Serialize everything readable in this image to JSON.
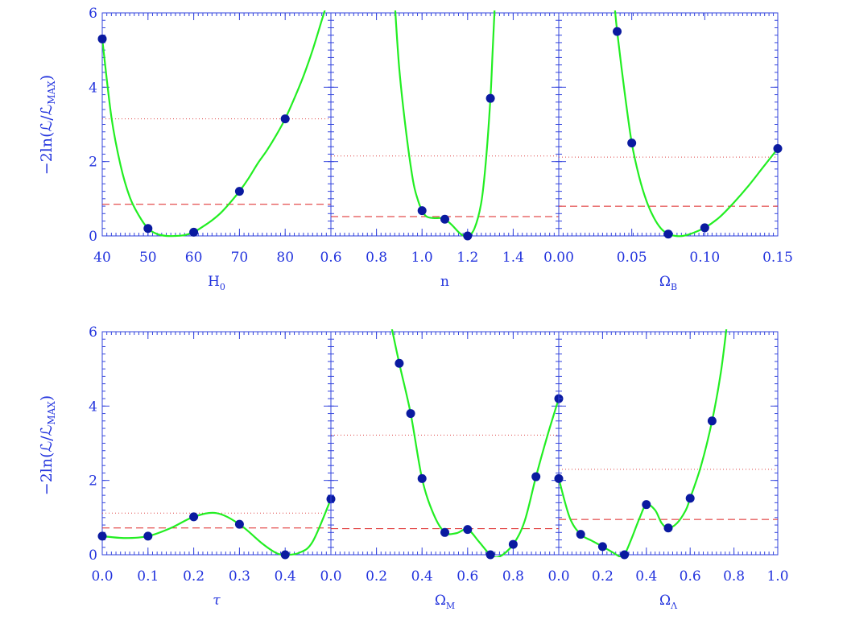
{
  "colors": {
    "axis": "#3344dd",
    "curve": "#22ee22",
    "point": "#0a1aa0",
    "sigma1": "#dd2222",
    "sigma2": "#dd4444"
  },
  "ylabel": "−2ln(ℒ/ℒ",
  "ylabel_sub": "MAX",
  "chart_data": [
    {
      "type": "line",
      "xlabel": "H",
      "xlabel_sub": "0",
      "xlim": [
        40,
        90
      ],
      "ylim": [
        0,
        6
      ],
      "xticks": [
        "40",
        "50",
        "60",
        "70",
        "80",
        "0.6"
      ],
      "xtick_values": [
        40,
        50,
        60,
        70,
        80,
        90
      ],
      "yticks": [
        "0",
        "2",
        "4",
        "6"
      ],
      "points": [
        [
          40,
          5.3
        ],
        [
          50,
          0.2
        ],
        [
          60,
          0.1
        ],
        [
          70,
          1.2
        ],
        [
          80,
          3.15
        ]
      ],
      "curve": [
        [
          40,
          5.3
        ],
        [
          42,
          3.2
        ],
        [
          44,
          1.9
        ],
        [
          46,
          1.05
        ],
        [
          48,
          0.55
        ],
        [
          50,
          0.2
        ],
        [
          52,
          0.05
        ],
        [
          54,
          0.0
        ],
        [
          56,
          0.0
        ],
        [
          58,
          0.02
        ],
        [
          60,
          0.1
        ],
        [
          62,
          0.25
        ],
        [
          64,
          0.42
        ],
        [
          66,
          0.63
        ],
        [
          68,
          0.9
        ],
        [
          70,
          1.2
        ],
        [
          72,
          1.55
        ],
        [
          74,
          1.95
        ],
        [
          76,
          2.3
        ],
        [
          78,
          2.7
        ],
        [
          80,
          3.15
        ],
        [
          82,
          3.7
        ],
        [
          84,
          4.3
        ],
        [
          86,
          5.0
        ],
        [
          88,
          5.8
        ],
        [
          89,
          6.2
        ]
      ],
      "sigma1": 0.85,
      "sigma2": 3.15
    },
    {
      "type": "line",
      "xlabel": "n",
      "xlabel_sub": "",
      "xlim": [
        0.6,
        1.6
      ],
      "ylim": [
        0,
        6
      ],
      "xticks": [
        "0.8",
        "1.0",
        "1.2",
        "1.4",
        "0.00"
      ],
      "xtick_values": [
        0.8,
        1.0,
        1.2,
        1.4,
        1.6
      ],
      "yticks": [],
      "points": [
        [
          1.0,
          0.68
        ],
        [
          1.1,
          0.45
        ],
        [
          1.2,
          0.0
        ],
        [
          1.3,
          3.7
        ]
      ],
      "curve": [
        [
          0.88,
          6.3
        ],
        [
          0.9,
          4.5
        ],
        [
          0.93,
          2.8
        ],
        [
          0.96,
          1.5
        ],
        [
          0.98,
          1.0
        ],
        [
          1.0,
          0.68
        ],
        [
          1.02,
          0.52
        ],
        [
          1.05,
          0.48
        ],
        [
          1.08,
          0.48
        ],
        [
          1.1,
          0.45
        ],
        [
          1.13,
          0.3
        ],
        [
          1.17,
          0.05
        ],
        [
          1.2,
          0.0
        ],
        [
          1.23,
          0.2
        ],
        [
          1.26,
          0.9
        ],
        [
          1.28,
          2.0
        ],
        [
          1.3,
          3.7
        ],
        [
          1.31,
          5.0
        ],
        [
          1.32,
          6.3
        ]
      ],
      "sigma1": 0.52,
      "sigma2": 2.15
    },
    {
      "type": "line",
      "xlabel": "Ω",
      "xlabel_sub": "B",
      "xlim": [
        0.0,
        0.15
      ],
      "ylim": [
        0,
        6
      ],
      "xticks": [
        "0.05",
        "0.10",
        "0.15"
      ],
      "xtick_values": [
        0.05,
        0.1,
        0.15
      ],
      "yticks": [],
      "points": [
        [
          0.04,
          5.5
        ],
        [
          0.05,
          2.5
        ],
        [
          0.075,
          0.05
        ],
        [
          0.1,
          0.22
        ],
        [
          0.15,
          2.35
        ]
      ],
      "curve": [
        [
          0.038,
          6.3
        ],
        [
          0.04,
          5.5
        ],
        [
          0.045,
          3.9
        ],
        [
          0.05,
          2.5
        ],
        [
          0.055,
          1.6
        ],
        [
          0.06,
          0.95
        ],
        [
          0.065,
          0.5
        ],
        [
          0.07,
          0.2
        ],
        [
          0.075,
          0.05
        ],
        [
          0.08,
          0.0
        ],
        [
          0.085,
          0.0
        ],
        [
          0.09,
          0.05
        ],
        [
          0.1,
          0.22
        ],
        [
          0.11,
          0.5
        ],
        [
          0.12,
          0.9
        ],
        [
          0.13,
          1.35
        ],
        [
          0.14,
          1.85
        ],
        [
          0.15,
          2.35
        ]
      ],
      "sigma1": 0.8,
      "sigma2": 2.12
    },
    {
      "type": "line",
      "xlabel": "τ",
      "xlabel_sub": "",
      "xlim": [
        0.0,
        0.5
      ],
      "ylim": [
        0,
        6
      ],
      "xticks": [
        "0.0",
        "0.1",
        "0.2",
        "0.3",
        "0.4",
        "0.0"
      ],
      "xtick_values": [
        0.0,
        0.1,
        0.2,
        0.3,
        0.4,
        0.5
      ],
      "yticks": [
        "0",
        "2",
        "4",
        "6"
      ],
      "points": [
        [
          0.0,
          0.5
        ],
        [
          0.1,
          0.5
        ],
        [
          0.2,
          1.02
        ],
        [
          0.3,
          0.82
        ],
        [
          0.4,
          0.0
        ],
        [
          0.5,
          1.5
        ]
      ],
      "curve": [
        [
          0.0,
          0.5
        ],
        [
          0.05,
          0.45
        ],
        [
          0.1,
          0.5
        ],
        [
          0.15,
          0.72
        ],
        [
          0.2,
          1.02
        ],
        [
          0.25,
          1.12
        ],
        [
          0.3,
          0.82
        ],
        [
          0.35,
          0.3
        ],
        [
          0.38,
          0.05
        ],
        [
          0.4,
          0.0
        ],
        [
          0.43,
          0.05
        ],
        [
          0.46,
          0.35
        ],
        [
          0.5,
          1.5
        ]
      ],
      "sigma1": 0.72,
      "sigma2": 1.12
    },
    {
      "type": "line",
      "xlabel": "Ω",
      "xlabel_sub": "M",
      "xlim": [
        0.0,
        1.0
      ],
      "ylim": [
        0,
        6
      ],
      "xticks": [
        "0.2",
        "0.4",
        "0.6",
        "0.8",
        "0.0"
      ],
      "xtick_values": [
        0.2,
        0.4,
        0.6,
        0.8,
        1.0
      ],
      "yticks": [],
      "points": [
        [
          0.3,
          5.15
        ],
        [
          0.35,
          3.8
        ],
        [
          0.4,
          2.05
        ],
        [
          0.5,
          0.6
        ],
        [
          0.6,
          0.68
        ],
        [
          0.7,
          0.0
        ],
        [
          0.8,
          0.28
        ],
        [
          0.9,
          2.1
        ],
        [
          1.0,
          4.2
        ]
      ],
      "curve": [
        [
          0.26,
          6.3
        ],
        [
          0.3,
          5.15
        ],
        [
          0.35,
          3.8
        ],
        [
          0.4,
          2.05
        ],
        [
          0.45,
          1.1
        ],
        [
          0.5,
          0.6
        ],
        [
          0.55,
          0.58
        ],
        [
          0.6,
          0.68
        ],
        [
          0.65,
          0.35
        ],
        [
          0.7,
          0.0
        ],
        [
          0.74,
          -0.05
        ],
        [
          0.8,
          0.28
        ],
        [
          0.85,
          0.9
        ],
        [
          0.9,
          2.1
        ],
        [
          0.95,
          3.2
        ],
        [
          1.0,
          4.2
        ]
      ],
      "sigma1": 0.7,
      "sigma2": 3.22
    },
    {
      "type": "line",
      "xlabel": "Ω",
      "xlabel_sub": "Λ",
      "xlim": [
        0.0,
        1.0
      ],
      "ylim": [
        0,
        6
      ],
      "xticks": [
        "0.2",
        "0.4",
        "0.6",
        "0.8",
        "1.0"
      ],
      "xtick_values": [
        0.2,
        0.4,
        0.6,
        0.8,
        1.0
      ],
      "yticks": [],
      "points": [
        [
          0.0,
          2.05
        ],
        [
          0.1,
          0.55
        ],
        [
          0.2,
          0.22
        ],
        [
          0.3,
          0.0
        ],
        [
          0.4,
          1.35
        ],
        [
          0.5,
          0.72
        ],
        [
          0.6,
          1.52
        ],
        [
          0.7,
          3.6
        ]
      ],
      "curve": [
        [
          0.0,
          2.05
        ],
        [
          0.05,
          1.0
        ],
        [
          0.1,
          0.55
        ],
        [
          0.15,
          0.38
        ],
        [
          0.2,
          0.22
        ],
        [
          0.25,
          0.05
        ],
        [
          0.28,
          -0.05
        ],
        [
          0.3,
          0.0
        ],
        [
          0.33,
          0.4
        ],
        [
          0.37,
          1.0
        ],
        [
          0.4,
          1.35
        ],
        [
          0.44,
          1.2
        ],
        [
          0.47,
          0.85
        ],
        [
          0.5,
          0.72
        ],
        [
          0.54,
          0.85
        ],
        [
          0.58,
          1.2
        ],
        [
          0.6,
          1.52
        ],
        [
          0.65,
          2.4
        ],
        [
          0.7,
          3.6
        ],
        [
          0.74,
          4.9
        ],
        [
          0.77,
          6.3
        ]
      ],
      "sigma1": 0.95,
      "sigma2": 2.3
    }
  ]
}
